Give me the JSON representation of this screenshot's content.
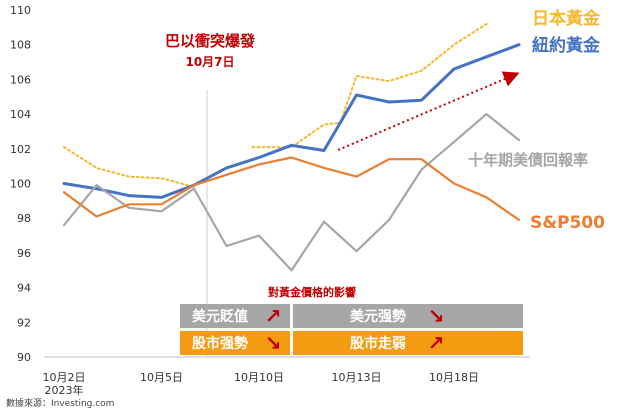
{
  "chart_data": {
    "type": "line",
    "source": "數據來源：Investing.com",
    "ylim": [
      90,
      110
    ],
    "y_ticks": [
      90,
      92,
      94,
      96,
      98,
      100,
      102,
      104,
      106,
      108,
      110
    ],
    "x_ticks": [
      {
        "label": "10月2日",
        "sublabel": "2023年",
        "x": 0
      },
      {
        "label": "10月5日",
        "x": 3
      },
      {
        "label": "10月10日",
        "x": 6
      },
      {
        "label": "10月13日",
        "x": 9
      },
      {
        "label": "10月18日",
        "x": 12
      }
    ],
    "event": {
      "title": "巴以衝突爆發",
      "date": "10月7日",
      "x": 4.4
    },
    "series": [
      {
        "name": "日本黃金",
        "color": "#F5B82E",
        "style": "dotted",
        "values": [
          [
            0,
            102.1
          ],
          [
            1,
            100.9
          ],
          [
            2,
            100.4
          ],
          [
            3,
            100.3
          ],
          [
            4,
            99.8
          ],
          [
            null,
            null
          ],
          [
            5.8,
            102.1
          ],
          [
            6.2,
            102.1
          ],
          [
            7,
            102.1
          ],
          [
            8,
            103.4
          ],
          [
            8.5,
            103.5
          ],
          [
            9,
            106.2
          ],
          [
            10,
            105.9
          ],
          [
            11,
            106.5
          ],
          [
            12,
            108.0
          ],
          [
            13,
            109.2
          ]
        ]
      },
      {
        "name": "紐約黃金",
        "color": "#4472C4",
        "style": "solid",
        "values": [
          [
            0,
            100.0
          ],
          [
            1,
            99.7
          ],
          [
            2,
            99.3
          ],
          [
            3,
            99.2
          ],
          [
            4,
            99.9
          ],
          [
            5,
            100.9
          ],
          [
            6,
            101.5
          ],
          [
            7,
            102.2
          ],
          [
            8,
            101.9
          ],
          [
            9,
            105.1
          ],
          [
            10,
            104.7
          ],
          [
            11,
            104.8
          ],
          [
            12,
            106.6
          ],
          [
            13,
            107.3
          ],
          [
            14,
            108.0
          ]
        ]
      },
      {
        "name": "十年期美債回報率",
        "color": "#A6A6A6",
        "style": "solid",
        "values": [
          [
            0,
            97.6
          ],
          [
            1,
            99.9
          ],
          [
            2,
            98.6
          ],
          [
            3,
            98.4
          ],
          [
            4,
            99.7
          ],
          [
            5,
            96.4
          ],
          [
            6,
            97.0
          ],
          [
            7,
            95.0
          ],
          [
            8,
            97.8
          ],
          [
            9,
            96.1
          ],
          [
            10,
            97.9
          ],
          [
            11,
            100.8
          ],
          [
            12,
            102.4
          ],
          [
            13,
            104.0
          ],
          [
            14,
            102.5
          ]
        ]
      },
      {
        "name": "S&P500",
        "color": "#ED7D31",
        "style": "solid",
        "values": [
          [
            0,
            99.5
          ],
          [
            1,
            98.1
          ],
          [
            2,
            98.8
          ],
          [
            3,
            98.8
          ],
          [
            4,
            99.9
          ],
          [
            5,
            100.5
          ],
          [
            6,
            101.1
          ],
          [
            7,
            101.5
          ],
          [
            8,
            100.9
          ],
          [
            9,
            100.4
          ],
          [
            10,
            101.4
          ],
          [
            11,
            101.4
          ],
          [
            12,
            100.0
          ],
          [
            13,
            99.2
          ],
          [
            14,
            97.9
          ]
        ]
      }
    ],
    "impact_box": {
      "title": "對黃金價格的影響",
      "rows": [
        {
          "left": "美元貶值",
          "right": "美元强勢",
          "color": "#A6A6A6"
        },
        {
          "left": "股市强勢",
          "right": "股市走弱",
          "color": "#F39C12"
        }
      ]
    }
  }
}
